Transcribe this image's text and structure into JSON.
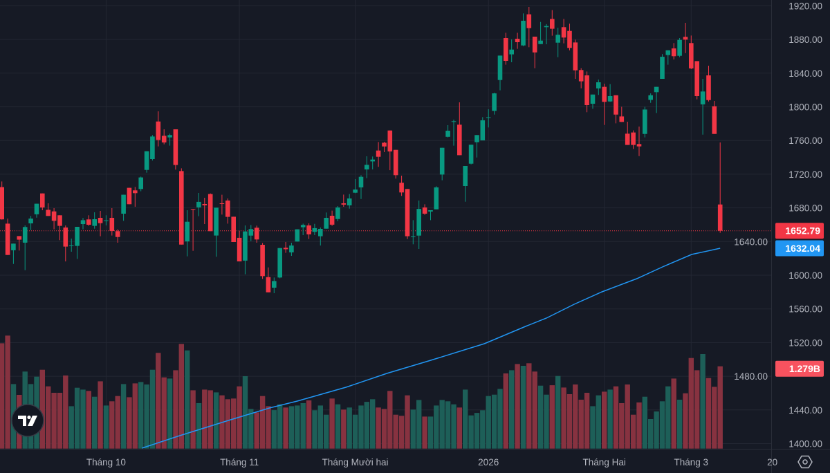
{
  "chart_data": {
    "type": "candlestick",
    "price_axis": {
      "min": 1400,
      "max": 1920,
      "step": 40,
      "ticks": [
        "1920.00",
        "1880.00",
        "1840.00",
        "1800.00",
        "1760.00",
        "1720.00",
        "1680.00",
        "1640.00",
        "1600.00",
        "1560.00",
        "1520.00",
        "1480.00",
        "1440.00",
        "1400.00"
      ]
    },
    "time_axis": {
      "ticks": [
        {
          "label": "Tháng 10",
          "candle_index": 18
        },
        {
          "label": "Tháng 11",
          "candle_index": 41
        },
        {
          "label": "Tháng Mười hai",
          "candle_index": 61
        },
        {
          "label": "2026",
          "candle_index": 84
        },
        {
          "label": "Tháng Hai",
          "candle_index": 104
        },
        {
          "label": "Tháng 3",
          "candle_index": 119
        },
        {
          "label": "20",
          "candle_index": 133
        }
      ]
    },
    "grid": true,
    "colors": {
      "up": "#089981",
      "down": "#f23645",
      "volume_up": "#1d5f58",
      "volume_down": "#873240",
      "ma": "#2196f3",
      "background": "#161a25"
    },
    "last_price": {
      "value": 1652.79,
      "label": "1652.79",
      "color": "#f23645"
    },
    "ma_last": {
      "value": 1632.04,
      "label": "1632.04",
      "color": "#2196f3"
    },
    "last_volume": {
      "value": 1.279,
      "label": "1.279B",
      "color": "#f7525f"
    },
    "candles_ohlc": [
      [
        1704.6,
        1711.4,
        1666.0,
        1666.3
      ],
      [
        1661.3,
        1667.3,
        1624.0,
        1624.1
      ],
      [
        1629.6,
        1637.5,
        1613.4,
        1637.5
      ],
      [
        1646.5,
        1646.5,
        1629.3,
        1642.2
      ],
      [
        1638.6,
        1659.1,
        1606.0,
        1657.2
      ],
      [
        1661.6,
        1670.4,
        1653.7,
        1667.3
      ],
      [
        1672.3,
        1684.9,
        1668.4,
        1684.9
      ],
      [
        1697.2,
        1697.2,
        1677.2,
        1680.5
      ],
      [
        1677.7,
        1685.4,
        1670.4,
        1670.4
      ],
      [
        1675.8,
        1679.7,
        1654.5,
        1664.6
      ],
      [
        1671.2,
        1671.2,
        1641.6,
        1658.6
      ],
      [
        1656.7,
        1659.1,
        1616.4,
        1634.0
      ],
      [
        1635.0,
        1643.5,
        1627.9,
        1635.3
      ],
      [
        1634.8,
        1657.5,
        1619.4,
        1657.5
      ],
      [
        1660.8,
        1667.9,
        1654.5,
        1665.4
      ],
      [
        1666.3,
        1671.2,
        1658.6,
        1660.0
      ],
      [
        1658.6,
        1674.7,
        1655.3,
        1666.5
      ],
      [
        1668.2,
        1676.4,
        1646.3,
        1661.9
      ],
      [
        1664.9,
        1671.2,
        1659.1,
        1665.2
      ],
      [
        1668.2,
        1679.7,
        1647.1,
        1652.6
      ],
      [
        1652.3,
        1654.5,
        1638.6,
        1645.4
      ],
      [
        1673.1,
        1695.6,
        1664.6,
        1695.6
      ],
      [
        1703.8,
        1703.8,
        1684.3,
        1684.3
      ],
      [
        1700.8,
        1704.9,
        1681.3,
        1697.5
      ],
      [
        1702.4,
        1717.2,
        1699.7,
        1716.1
      ],
      [
        1725.1,
        1747.3,
        1721.8,
        1747.3
      ],
      [
        1738.0,
        1766.5,
        1736.3,
        1764.8
      ],
      [
        1782.6,
        1794.7,
        1753.0,
        1760.7
      ],
      [
        1765.6,
        1773.3,
        1755.5,
        1757.7
      ],
      [
        1763.7,
        1768.1,
        1753.9,
        1766.5
      ],
      [
        1773.3,
        1773.3,
        1725.4,
        1730.9
      ],
      [
        1723.7,
        1727.0,
        1636.4,
        1636.4
      ],
      [
        1640.2,
        1677.2,
        1622.4,
        1663.5
      ],
      [
        1678.6,
        1678.6,
        1629.0,
        1678.3
      ],
      [
        1680.5,
        1697.7,
        1670.1,
        1687.1
      ],
      [
        1684.6,
        1692.0,
        1660.8,
        1683.0
      ],
      [
        1696.4,
        1697.2,
        1652.3,
        1652.3
      ],
      [
        1647.1,
        1680.2,
        1621.9,
        1680.2
      ],
      [
        1685.4,
        1695.6,
        1672.0,
        1684.9
      ],
      [
        1688.7,
        1691.2,
        1661.3,
        1669.3
      ],
      [
        1669.5,
        1669.5,
        1639.4,
        1639.4
      ],
      [
        1644.4,
        1652.8,
        1616.4,
        1616.4
      ],
      [
        1617.3,
        1659.1,
        1601.1,
        1652.0
      ],
      [
        1647.1,
        1659.7,
        1640.5,
        1654.8
      ],
      [
        1656.4,
        1658.9,
        1638.6,
        1642.4
      ],
      [
        1636.1,
        1638.3,
        1595.6,
        1598.9
      ],
      [
        1597.8,
        1609.3,
        1579.7,
        1579.7
      ],
      [
        1585.2,
        1597.3,
        1578.6,
        1593.1
      ],
      [
        1597.3,
        1632.3,
        1596.4,
        1632.3
      ],
      [
        1632.6,
        1639.4,
        1626.6,
        1630.9
      ],
      [
        1627.1,
        1638.6,
        1623.0,
        1635.3
      ],
      [
        1640.0,
        1654.5,
        1640.0,
        1654.5
      ],
      [
        1657.0,
        1661.3,
        1647.6,
        1659.7
      ],
      [
        1659.1,
        1661.6,
        1643.0,
        1648.5
      ],
      [
        1651.5,
        1661.0,
        1647.6,
        1655.9
      ],
      [
        1646.3,
        1656.7,
        1635.3,
        1655.0
      ],
      [
        1655.3,
        1674.5,
        1655.3,
        1668.2
      ],
      [
        1670.6,
        1676.7,
        1658.6,
        1660.0
      ],
      [
        1666.8,
        1682.1,
        1664.1,
        1680.5
      ],
      [
        1685.4,
        1695.8,
        1681.3,
        1683.8
      ],
      [
        1683.0,
        1696.4,
        1679.1,
        1691.2
      ],
      [
        1698.0,
        1714.2,
        1697.5,
        1701.8
      ],
      [
        1704.3,
        1718.8,
        1690.6,
        1716.9
      ],
      [
        1725.7,
        1741.3,
        1715.3,
        1731.1
      ],
      [
        1735.2,
        1741.0,
        1725.7,
        1737.4
      ],
      [
        1748.1,
        1758.2,
        1728.7,
        1740.7
      ],
      [
        1757.4,
        1758.5,
        1746.2,
        1753.0
      ],
      [
        1771.9,
        1771.9,
        1724.8,
        1747.0
      ],
      [
        1748.9,
        1748.9,
        1714.7,
        1718.8
      ],
      [
        1709.8,
        1718.3,
        1694.2,
        1698.3
      ],
      [
        1702.4,
        1702.4,
        1643.0,
        1646.3
      ],
      [
        1645.7,
        1665.4,
        1636.7,
        1646.0
      ],
      [
        1647.1,
        1688.7,
        1631.2,
        1678.8
      ],
      [
        1680.5,
        1684.3,
        1671.7,
        1673.1
      ],
      [
        1675.6,
        1677.2,
        1665.4,
        1677.2
      ],
      [
        1678.3,
        1705.7,
        1678.3,
        1704.3
      ],
      [
        1719.6,
        1751.4,
        1712.8,
        1751.4
      ],
      [
        1764.5,
        1778.2,
        1763.7,
        1771.7
      ],
      [
        1782.6,
        1784.8,
        1753.9,
        1782.9
      ],
      [
        1778.8,
        1805.3,
        1742.6,
        1742.6
      ],
      [
        1706.0,
        1729.8,
        1687.3,
        1729.8
      ],
      [
        1732.5,
        1755.0,
        1731.7,
        1755.0
      ],
      [
        1758.0,
        1766.5,
        1739.9,
        1766.5
      ],
      [
        1760.2,
        1787.8,
        1760.2,
        1784.0
      ],
      [
        1787.3,
        1797.1,
        1775.5,
        1787.6
      ],
      [
        1795.2,
        1816.8,
        1790.8,
        1816.0
      ],
      [
        1831.9,
        1860.9,
        1819.6,
        1860.9
      ],
      [
        1881.7,
        1888.0,
        1850.0,
        1854.6
      ],
      [
        1862.3,
        1880.1,
        1853.0,
        1868.0
      ],
      [
        1880.9,
        1888.0,
        1868.9,
        1876.8
      ],
      [
        1873.0,
        1911.0,
        1872.1,
        1902.3
      ],
      [
        1909.9,
        1918.7,
        1870.8,
        1893.5
      ],
      [
        1883.4,
        1883.4,
        1845.9,
        1864.7
      ],
      [
        1874.6,
        1900.9,
        1874.6,
        1878.7
      ],
      [
        1894.6,
        1898.2,
        1874.3,
        1896.0
      ],
      [
        1904.4,
        1914.9,
        1884.5,
        1892.7
      ],
      [
        1876.2,
        1894.0,
        1859.0,
        1885.6
      ],
      [
        1894.6,
        1904.4,
        1875.4,
        1882.3
      ],
      [
        1890.2,
        1898.7,
        1867.2,
        1870.0
      ],
      [
        1876.5,
        1879.8,
        1833.3,
        1843.4
      ],
      [
        1843.7,
        1845.9,
        1822.0,
        1830.3
      ],
      [
        1837.4,
        1842.0,
        1793.6,
        1802.1
      ],
      [
        1803.7,
        1814.6,
        1797.7,
        1814.6
      ],
      [
        1822.0,
        1832.4,
        1814.1,
        1829.2
      ],
      [
        1823.7,
        1827.5,
        1778.5,
        1805.9
      ],
      [
        1806.4,
        1827.0,
        1805.9,
        1812.7
      ],
      [
        1813.8,
        1813.8,
        1780.4,
        1790.8
      ],
      [
        1788.6,
        1800.1,
        1782.1,
        1782.1
      ],
      [
        1768.1,
        1782.3,
        1754.7,
        1754.7
      ],
      [
        1769.5,
        1772.0,
        1750.0,
        1754.7
      ],
      [
        1755.8,
        1776.6,
        1741.5,
        1753.0
      ],
      [
        1767.8,
        1800.1,
        1763.7,
        1796.8
      ],
      [
        1808.3,
        1816.0,
        1804.8,
        1813.8
      ],
      [
        1817.4,
        1823.7,
        1792.7,
        1823.7
      ],
      [
        1833.3,
        1862.6,
        1833.3,
        1859.5
      ],
      [
        1861.5,
        1867.2,
        1850.0,
        1867.2
      ],
      [
        1869.4,
        1875.7,
        1856.3,
        1860.1
      ],
      [
        1860.6,
        1881.7,
        1859.0,
        1879.5
      ],
      [
        1883.1,
        1899.8,
        1863.9,
        1879.8
      ],
      [
        1875.7,
        1884.7,
        1844.8,
        1845.6
      ],
      [
        1854.3,
        1854.3,
        1808.9,
        1812.7
      ],
      [
        1802.9,
        1833.3,
        1767.0,
        1818.2
      ],
      [
        1837.4,
        1848.9,
        1806.4,
        1808.1
      ],
      [
        1800.7,
        1807.0,
        1767.8,
        1767.8
      ],
      [
        1684.0,
        1757.7,
        1650.4,
        1652.79
      ]
    ],
    "volume_billions": [
      [
        1.637,
        "down"
      ],
      [
        1.756,
        "down"
      ],
      [
        1.003,
        "up"
      ],
      [
        0.835,
        "down"
      ],
      [
        1.197,
        "up"
      ],
      [
        1.003,
        "up"
      ],
      [
        1.118,
        "up"
      ],
      [
        1.225,
        "down"
      ],
      [
        0.967,
        "down"
      ],
      [
        0.867,
        "down"
      ],
      [
        0.867,
        "down"
      ],
      [
        1.136,
        "down"
      ],
      [
        0.659,
        "up"
      ],
      [
        0.946,
        "up"
      ],
      [
        0.917,
        "up"
      ],
      [
        0.896,
        "down"
      ],
      [
        0.806,
        "up"
      ],
      [
        1.046,
        "down"
      ],
      [
        0.67,
        "up"
      ],
      [
        0.735,
        "down"
      ],
      [
        0.817,
        "down"
      ],
      [
        1.003,
        "up"
      ],
      [
        0.799,
        "down"
      ],
      [
        1.014,
        "down"
      ],
      [
        1.035,
        "up"
      ],
      [
        0.996,
        "up"
      ],
      [
        1.225,
        "up"
      ],
      [
        1.487,
        "down"
      ],
      [
        1.107,
        "down"
      ],
      [
        1.089,
        "up"
      ],
      [
        1.218,
        "down"
      ],
      [
        1.627,
        "down"
      ],
      [
        1.526,
        "up"
      ],
      [
        0.906,
        "down"
      ],
      [
        0.706,
        "up"
      ],
      [
        0.917,
        "down"
      ],
      [
        0.906,
        "down"
      ],
      [
        0.874,
        "up"
      ],
      [
        0.828,
        "down"
      ],
      [
        0.767,
        "down"
      ],
      [
        0.778,
        "down"
      ],
      [
        0.967,
        "down"
      ],
      [
        1.125,
        "up"
      ],
      [
        0.616,
        "up"
      ],
      [
        0.563,
        "down"
      ],
      [
        0.817,
        "down"
      ],
      [
        0.659,
        "down"
      ],
      [
        0.598,
        "up"
      ],
      [
        0.688,
        "up"
      ],
      [
        0.638,
        "down"
      ],
      [
        0.659,
        "up"
      ],
      [
        0.67,
        "up"
      ],
      [
        0.706,
        "up"
      ],
      [
        0.749,
        "down"
      ],
      [
        0.595,
        "up"
      ],
      [
        0.67,
        "up"
      ],
      [
        0.527,
        "up"
      ],
      [
        0.778,
        "down"
      ],
      [
        0.688,
        "up"
      ],
      [
        0.606,
        "down"
      ],
      [
        0.638,
        "up"
      ],
      [
        0.527,
        "up"
      ],
      [
        0.67,
        "up"
      ],
      [
        0.727,
        "up"
      ],
      [
        0.767,
        "up"
      ],
      [
        0.638,
        "down"
      ],
      [
        0.616,
        "down"
      ],
      [
        0.896,
        "down"
      ],
      [
        0.527,
        "down"
      ],
      [
        0.509,
        "down"
      ],
      [
        0.828,
        "down"
      ],
      [
        0.606,
        "up"
      ],
      [
        0.756,
        "up"
      ],
      [
        0.498,
        "down"
      ],
      [
        0.498,
        "up"
      ],
      [
        0.67,
        "up"
      ],
      [
        0.756,
        "up"
      ],
      [
        0.735,
        "up"
      ],
      [
        0.688,
        "up"
      ],
      [
        0.638,
        "down"
      ],
      [
        0.917,
        "up"
      ],
      [
        0.516,
        "up"
      ],
      [
        0.555,
        "up"
      ],
      [
        0.595,
        "up"
      ],
      [
        0.817,
        "up"
      ],
      [
        0.838,
        "up"
      ],
      [
        0.928,
        "up"
      ],
      [
        1.168,
        "down"
      ],
      [
        1.218,
        "up"
      ],
      [
        1.315,
        "down"
      ],
      [
        1.286,
        "up"
      ],
      [
        1.326,
        "down"
      ],
      [
        1.197,
        "down"
      ],
      [
        0.978,
        "up"
      ],
      [
        0.838,
        "up"
      ],
      [
        0.985,
        "down"
      ],
      [
        1.129,
        "up"
      ],
      [
        0.949,
        "down"
      ],
      [
        0.846,
        "down"
      ],
      [
        0.996,
        "down"
      ],
      [
        0.76,
        "down"
      ],
      [
        0.867,
        "down"
      ],
      [
        0.659,
        "up"
      ],
      [
        0.828,
        "up"
      ],
      [
        0.885,
        "down"
      ],
      [
        0.917,
        "up"
      ],
      [
        0.967,
        "down"
      ],
      [
        0.706,
        "down"
      ],
      [
        0.996,
        "down"
      ],
      [
        0.527,
        "down"
      ],
      [
        0.717,
        "down"
      ],
      [
        0.806,
        "up"
      ],
      [
        0.459,
        "up"
      ],
      [
        0.577,
        "up"
      ],
      [
        0.735,
        "up"
      ],
      [
        0.967,
        "up"
      ],
      [
        1.089,
        "down"
      ],
      [
        0.76,
        "up"
      ],
      [
        0.86,
        "down"
      ],
      [
        1.408,
        "down"
      ],
      [
        1.218,
        "down"
      ],
      [
        1.469,
        "up"
      ],
      [
        1.096,
        "down"
      ],
      [
        0.96,
        "down"
      ],
      [
        1.279,
        "down"
      ]
    ],
    "moving_average": [
      {
        "i": 24.2,
        "v": 1394.6
      },
      {
        "i": 30.7,
        "v": 1409.4
      },
      {
        "i": 39.1,
        "v": 1427.5
      },
      {
        "i": 46.2,
        "v": 1442.3
      },
      {
        "i": 51,
        "v": 1450.5
      },
      {
        "i": 59.4,
        "v": 1466.9
      },
      {
        "i": 66.5,
        "v": 1483.4
      },
      {
        "i": 73.7,
        "v": 1498.2
      },
      {
        "i": 83.3,
        "v": 1518.7
      },
      {
        "i": 90.4,
        "v": 1539.2
      },
      {
        "i": 94,
        "v": 1549.1
      },
      {
        "i": 98.8,
        "v": 1565.5
      },
      {
        "i": 103.6,
        "v": 1580.3
      },
      {
        "i": 109.6,
        "v": 1595.9
      },
      {
        "i": 114.3,
        "v": 1610.7
      },
      {
        "i": 119.1,
        "v": 1624.7
      },
      {
        "i": 124,
        "v": 1632.04
      }
    ]
  },
  "logo": {
    "text": "TV"
  },
  "settings_icon": "gear-hexagon-icon"
}
